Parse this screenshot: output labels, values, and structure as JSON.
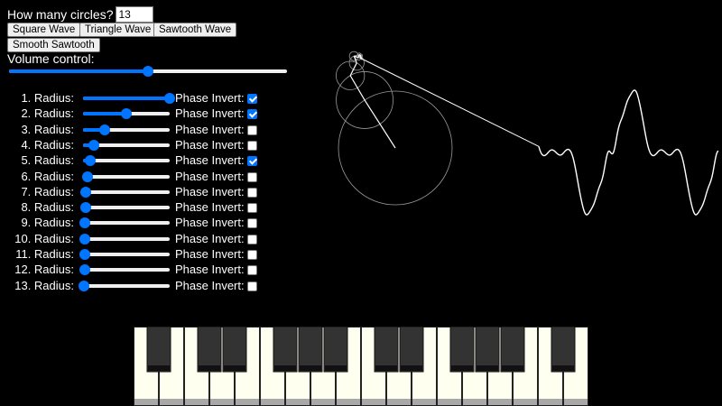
{
  "controls": {
    "count_label": "How many circles?",
    "count_value": "13",
    "buttons": {
      "square": "Square Wave",
      "triangle": "Triangle Wave",
      "sawtooth": "Sawtooth Wave",
      "smooth": "Smooth Sawtooth"
    },
    "volume_label": "Volume control:",
    "volume_level": 0.5
  },
  "harmonics": [
    {
      "label": "1. Radius:",
      "level": 1.0,
      "invert": true
    },
    {
      "label": "2. Radius:",
      "level": 0.5,
      "invert": true
    },
    {
      "label": "3. Radius:",
      "level": 0.25,
      "invert": false
    },
    {
      "label": "4. Radius:",
      "level": 0.13,
      "invert": false
    },
    {
      "label": "5. Radius:",
      "level": 0.08,
      "invert": true
    },
    {
      "label": "6. Radius:",
      "level": 0.05,
      "invert": false
    },
    {
      "label": "7. Radius:",
      "level": 0.03,
      "invert": false
    },
    {
      "label": "8. Radius:",
      "level": 0.03,
      "invert": false
    },
    {
      "label": "9. Radius:",
      "level": 0.02,
      "invert": false
    },
    {
      "label": "10. Radius:",
      "level": 0.02,
      "invert": false
    },
    {
      "label": "11. Radius:",
      "level": 0.02,
      "invert": false
    },
    {
      "label": "12. Radius:",
      "level": 0.02,
      "invert": false
    },
    {
      "label": "13. Radius:",
      "level": 0.01,
      "invert": false
    }
  ],
  "phase_invert_label": "Phase Invert:",
  "colors": {
    "background": "#000000",
    "accent": "#0075ff",
    "white_key": "#fffff0",
    "black_key": "#333333",
    "drawing": "#ffffff"
  },
  "piano": {
    "white_key_count": 18,
    "black_keys_after_white": [
      0,
      2,
      3,
      5,
      6,
      7,
      9,
      10,
      12,
      13,
      14,
      16
    ]
  }
}
